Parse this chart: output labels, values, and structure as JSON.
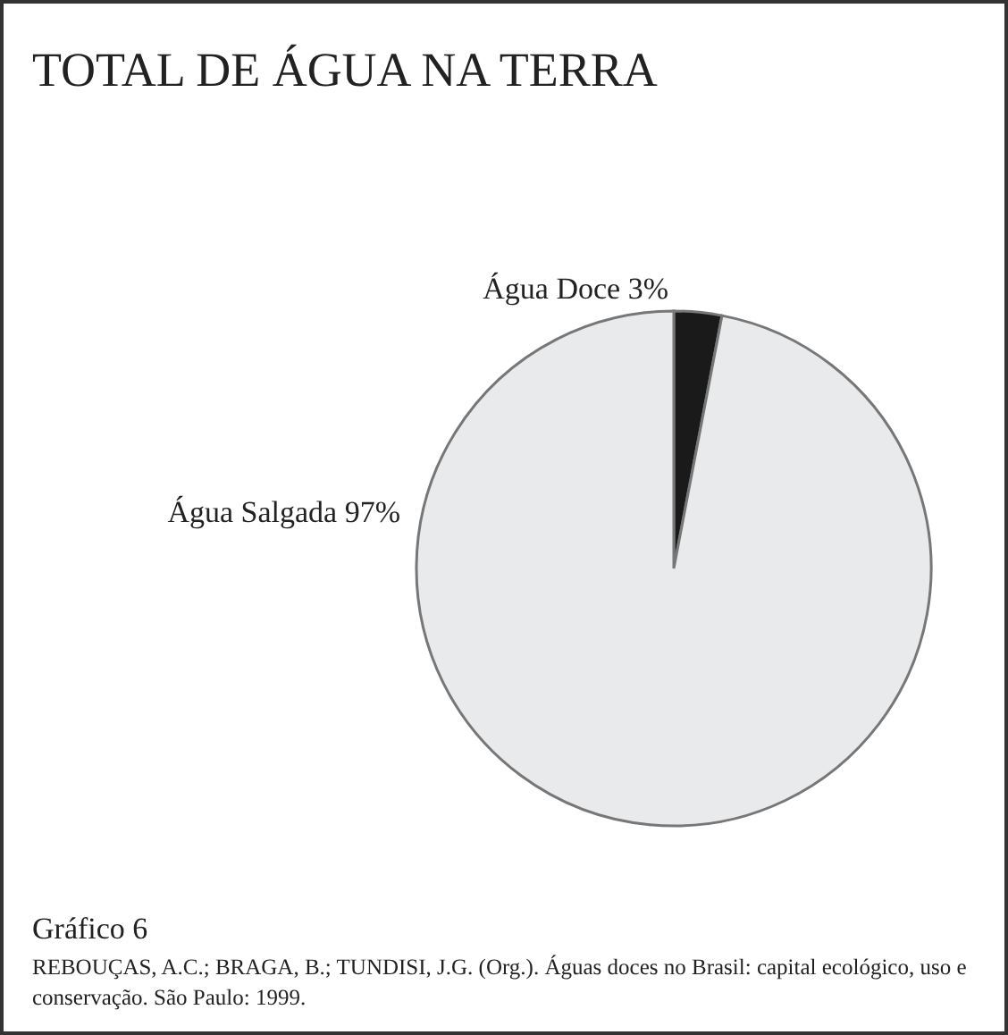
{
  "chart_data": {
    "type": "pie",
    "title": "TOTAL DE ÁGUA NA TERRA",
    "categories": [
      "Água Doce",
      "Água Salgada"
    ],
    "values": [
      3,
      97
    ],
    "colors": [
      "#1a1a1a",
      "#e8eaec"
    ],
    "value_labels": [
      "3%",
      "97%"
    ],
    "annotations": [
      "Gráfico 6",
      "REBOUÇAS, A.C.; BRAGA, B.; TUNDISI, J.G. (Org.). Águas doces no Brasil: capital ecológico, uso e conservação. São Paulo: 1999."
    ]
  }
}
